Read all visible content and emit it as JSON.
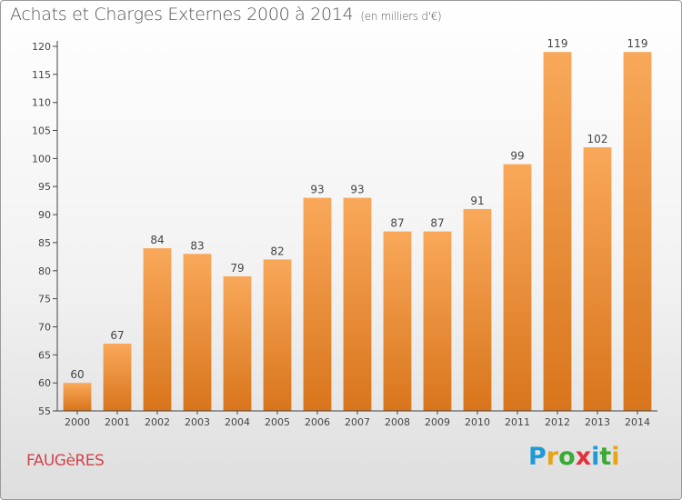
{
  "title": "Achats et Charges Externes 2000 à 2014",
  "subtitle": "(en milliers d'€)",
  "commune": "FAUGèRES",
  "brand": {
    "letters": [
      "P",
      "r",
      "o",
      "x",
      "i",
      "t",
      "i"
    ],
    "colors": [
      "#1e9ad6",
      "#e8a317",
      "#3aa935",
      "#e2313b",
      "#1e9ad6",
      "#3aa935",
      "#e8a317"
    ]
  },
  "colors": {
    "bar_top": "#f9a85a",
    "bar_bottom": "#d8751c",
    "axis": "#444444",
    "label": "#444444"
  },
  "chart_data": {
    "type": "bar",
    "title": "Achats et Charges Externes 2000 à 2014",
    "subtitle": "(en milliers d'€)",
    "xlabel": "",
    "ylabel": "",
    "categories": [
      "2000",
      "2001",
      "2002",
      "2003",
      "2004",
      "2005",
      "2006",
      "2007",
      "2008",
      "2009",
      "2010",
      "2011",
      "2012",
      "2013",
      "2014"
    ],
    "values": [
      60,
      67,
      84,
      83,
      79,
      82,
      93,
      93,
      87,
      87,
      91,
      99,
      119,
      102,
      119
    ],
    "data_labels": [
      "60",
      "67",
      "84",
      "83",
      "79",
      "82",
      "93",
      "93",
      "87",
      "87",
      "91",
      "99",
      "119",
      "102",
      "119"
    ],
    "ylim": [
      55,
      120
    ],
    "yticks": [
      55,
      60,
      65,
      70,
      75,
      80,
      85,
      90,
      95,
      100,
      105,
      110,
      115,
      120
    ],
    "grid": false,
    "legend": "none"
  }
}
